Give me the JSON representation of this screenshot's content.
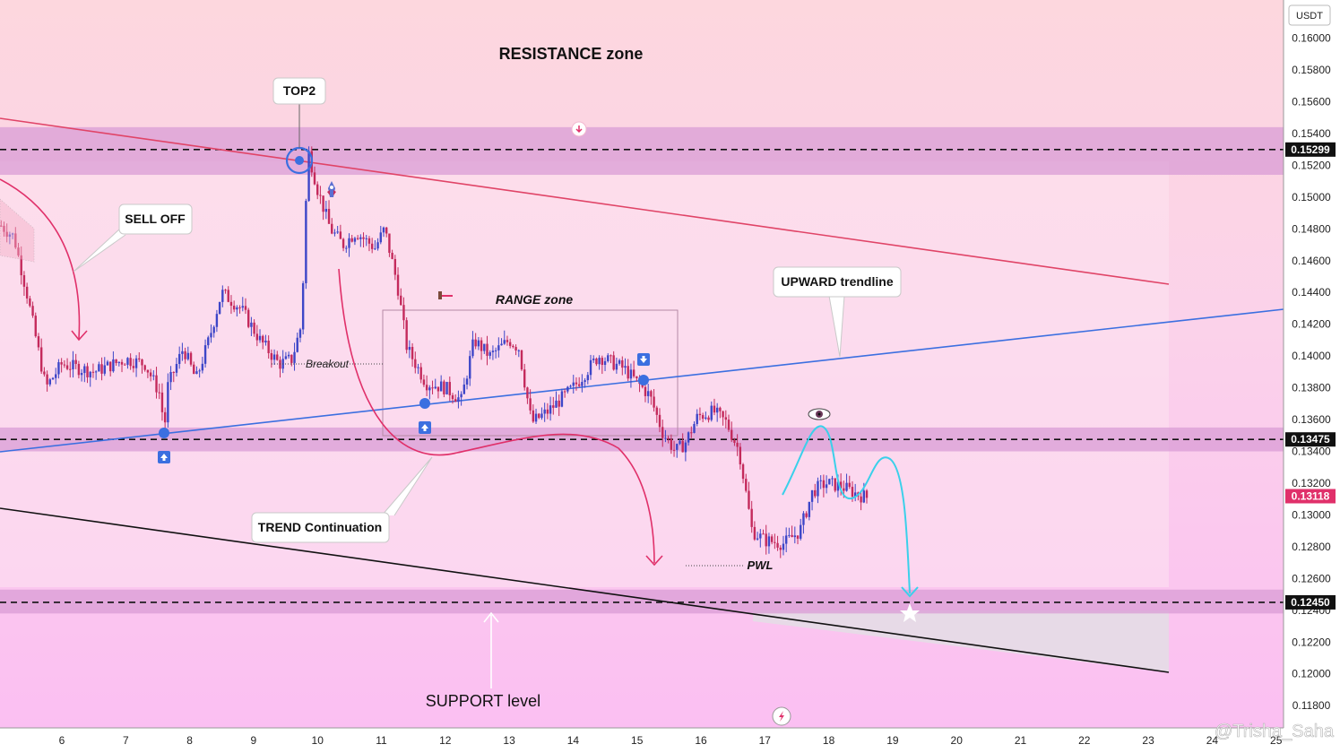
{
  "chart_data": {
    "type": "candlestick",
    "currency": "USDT",
    "x_ticks": [
      "6",
      "7",
      "8",
      "9",
      "10",
      "11",
      "12",
      "13",
      "14",
      "15",
      "16",
      "17",
      "18",
      "19",
      "20",
      "21",
      "22",
      "23",
      "24",
      "25"
    ],
    "y_ticks": [
      "0.16000",
      "0.15800",
      "0.15600",
      "0.15400",
      "0.15200",
      "0.15000",
      "0.14800",
      "0.14600",
      "0.14400",
      "0.14200",
      "0.14000",
      "0.13800",
      "0.13600",
      "0.13400",
      "0.13200",
      "0.13000",
      "0.12800",
      "0.12600",
      "0.12400",
      "0.12200",
      "0.12000",
      "0.11800"
    ],
    "ylim": [
      0.1166,
      0.1624
    ],
    "price_levels": [
      {
        "label": "0.15299",
        "value": 0.15299,
        "color": "#111111"
      },
      {
        "label": "0.13475",
        "value": 0.13475,
        "color": "#111111"
      },
      {
        "label": "0.12450",
        "value": 0.1245,
        "color": "#111111"
      }
    ],
    "last_price": {
      "label": "0.13118",
      "value": 0.13118,
      "color": "#e0306a"
    },
    "zones": [
      {
        "name": "resistance",
        "top": 0.1544,
        "bottom": 0.1514
      },
      {
        "name": "middle",
        "top": 0.1355,
        "bottom": 0.134
      },
      {
        "name": "support",
        "top": 0.1253,
        "bottom": 0.1238
      }
    ],
    "annotations": {
      "resistance_zone": "RESISTANCE zone",
      "top2": "TOP2",
      "sell_off": "SELL OFF",
      "range_zone": "RANGE zone",
      "breakout": "Breakout",
      "upward_trendline": "UPWARD trendline",
      "trend_continuation": "TREND Continuation",
      "pwl": "PWL",
      "support_level": "SUPPORT level"
    },
    "colors": {
      "candle_up": "#3d46c8",
      "candle_down": "#c42a5c",
      "resistance_line": "#e04467",
      "upward_line": "#3b6fe0",
      "support_line": "#111111",
      "projection": "#3ad0ea",
      "zone_fill": "#d99cd6"
    }
  },
  "watermark": "@Trisha_Saha"
}
